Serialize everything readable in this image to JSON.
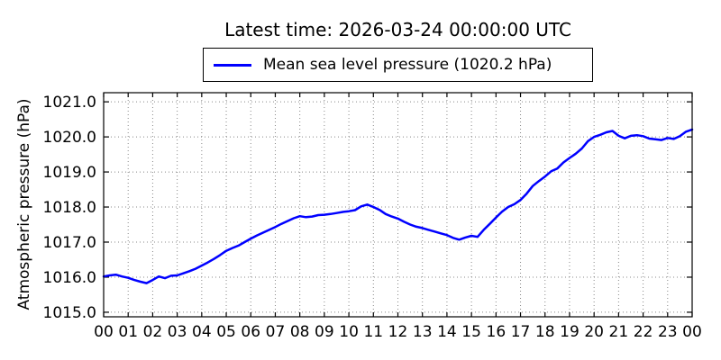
{
  "title": "Latest time: 2026-03-24 00:00:00 UTC",
  "legend": {
    "label": "Mean sea level pressure (1020.2 hPa)",
    "line_color": "#0000ff",
    "position": "upper center, above axes"
  },
  "axes": {
    "ylabel": "Atmospheric pressure (hPa)",
    "x_tick_labels": [
      "00",
      "01",
      "02",
      "03",
      "04",
      "05",
      "06",
      "07",
      "08",
      "09",
      "10",
      "11",
      "12",
      "13",
      "14",
      "15",
      "16",
      "17",
      "18",
      "19",
      "20",
      "21",
      "22",
      "23",
      "00"
    ],
    "y_tick_labels": [
      "1015.0",
      "1016.0",
      "1017.0",
      "1018.0",
      "1019.0",
      "1020.0",
      "1021.0"
    ]
  },
  "chart_data": {
    "type": "line",
    "title": "Latest time: 2026-03-24 00:00:00 UTC",
    "xlabel": "",
    "ylabel": "Atmospheric pressure (hPa)",
    "x_unit": "hour of day (UTC)",
    "xlim": [
      0,
      24
    ],
    "ylim": [
      1014.87,
      1021.26
    ],
    "x_ticks": [
      0,
      1,
      2,
      3,
      4,
      5,
      6,
      7,
      8,
      9,
      10,
      11,
      12,
      13,
      14,
      15,
      16,
      17,
      18,
      19,
      20,
      21,
      22,
      23,
      24
    ],
    "y_ticks": [
      1015,
      1016,
      1017,
      1018,
      1019,
      1020,
      1021
    ],
    "grid": true,
    "grid_style": "dotted",
    "latest_value_hpa": 1020.2,
    "series": [
      {
        "name": "Mean sea level pressure",
        "color": "#0000ff",
        "line_width": 2.5,
        "x_start": 0,
        "x_step": 0.25,
        "values": [
          1016.02,
          1016.05,
          1016.07,
          1016.02,
          1015.98,
          1015.92,
          1015.87,
          1015.83,
          1015.92,
          1016.02,
          1015.97,
          1016.04,
          1016.05,
          1016.11,
          1016.17,
          1016.24,
          1016.33,
          1016.42,
          1016.52,
          1016.63,
          1016.75,
          1016.83,
          1016.9,
          1017.0,
          1017.1,
          1017.19,
          1017.27,
          1017.35,
          1017.43,
          1017.52,
          1017.6,
          1017.68,
          1017.74,
          1017.71,
          1017.73,
          1017.77,
          1017.78,
          1017.8,
          1017.83,
          1017.86,
          1017.88,
          1017.91,
          1018.02,
          1018.07,
          1018.0,
          1017.92,
          1017.8,
          1017.73,
          1017.67,
          1017.58,
          1017.5,
          1017.44,
          1017.4,
          1017.35,
          1017.3,
          1017.25,
          1017.2,
          1017.12,
          1017.07,
          1017.13,
          1017.18,
          1017.15,
          1017.35,
          1017.52,
          1017.7,
          1017.87,
          1018.0,
          1018.08,
          1018.2,
          1018.38,
          1018.6,
          1018.74,
          1018.87,
          1019.02,
          1019.1,
          1019.27,
          1019.4,
          1019.52,
          1019.67,
          1019.88,
          1020.0,
          1020.06,
          1020.13,
          1020.17,
          1020.03,
          1019.96,
          1020.03,
          1020.05,
          1020.02,
          1019.95,
          1019.93,
          1019.91,
          1019.97,
          1019.94,
          1020.02,
          1020.15,
          1020.21
        ]
      }
    ]
  }
}
